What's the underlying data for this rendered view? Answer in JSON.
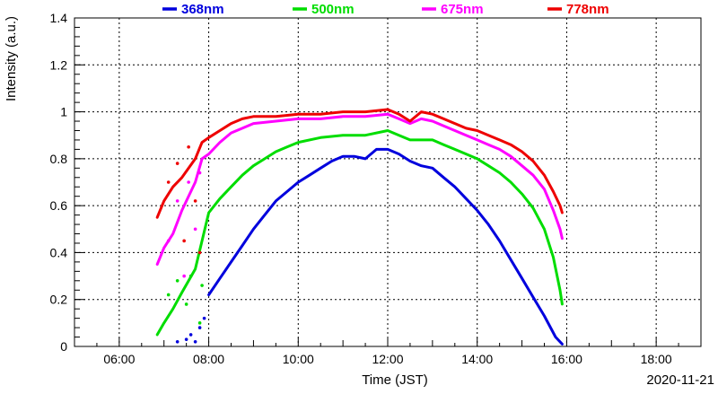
{
  "chart_data": {
    "type": "scatter",
    "title": "",
    "xlabel": "Time (JST)",
    "ylabel": "Intensity (a.u.)",
    "date_label": "2020-11-21",
    "xlim_hours": [
      5.0,
      19.0
    ],
    "ylim": [
      0,
      1.4
    ],
    "grid": true,
    "legend_position": "top",
    "x_ticks": [
      {
        "label": "06:00",
        "hour": 6
      },
      {
        "label": "08:00",
        "hour": 8
      },
      {
        "label": "10:00",
        "hour": 10
      },
      {
        "label": "12:00",
        "hour": 12
      },
      {
        "label": "14:00",
        "hour": 14
      },
      {
        "label": "16:00",
        "hour": 16
      },
      {
        "label": "18:00",
        "hour": 18
      }
    ],
    "y_ticks": [
      {
        "label": "0",
        "value": 0
      },
      {
        "label": "0.2",
        "value": 0.2
      },
      {
        "label": "0.4",
        "value": 0.4
      },
      {
        "label": "0.6",
        "value": 0.6
      },
      {
        "label": "0.8",
        "value": 0.8
      },
      {
        "label": "1",
        "value": 1.0
      },
      {
        "label": "1.2",
        "value": 1.2
      },
      {
        "label": "1.4",
        "value": 1.4
      }
    ],
    "series": [
      {
        "name": "368nm",
        "color": "#0000dd",
        "points": [
          [
            8.0,
            0.22
          ],
          [
            8.25,
            0.29
          ],
          [
            8.5,
            0.36
          ],
          [
            8.75,
            0.43
          ],
          [
            9.0,
            0.5
          ],
          [
            9.25,
            0.56
          ],
          [
            9.5,
            0.62
          ],
          [
            9.75,
            0.66
          ],
          [
            10.0,
            0.7
          ],
          [
            10.25,
            0.73
          ],
          [
            10.5,
            0.76
          ],
          [
            10.75,
            0.79
          ],
          [
            11.0,
            0.81
          ],
          [
            11.25,
            0.81
          ],
          [
            11.5,
            0.8
          ],
          [
            11.75,
            0.84
          ],
          [
            12.0,
            0.84
          ],
          [
            12.25,
            0.82
          ],
          [
            12.5,
            0.79
          ],
          [
            12.75,
            0.77
          ],
          [
            13.0,
            0.76
          ],
          [
            13.25,
            0.72
          ],
          [
            13.5,
            0.68
          ],
          [
            13.75,
            0.63
          ],
          [
            14.0,
            0.58
          ],
          [
            14.25,
            0.52
          ],
          [
            14.5,
            0.45
          ],
          [
            14.75,
            0.37
          ],
          [
            15.0,
            0.29
          ],
          [
            15.25,
            0.21
          ],
          [
            15.5,
            0.13
          ],
          [
            15.75,
            0.04
          ],
          [
            15.9,
            0.01
          ]
        ],
        "early_scatter": [
          [
            7.3,
            0.02
          ],
          [
            7.5,
            0.03
          ],
          [
            7.6,
            0.05
          ],
          [
            7.7,
            0.02
          ],
          [
            7.8,
            0.08
          ],
          [
            7.9,
            0.12
          ]
        ]
      },
      {
        "name": "500nm",
        "color": "#00dd00",
        "points": [
          [
            6.85,
            0.05
          ],
          [
            7.0,
            0.1
          ],
          [
            7.2,
            0.16
          ],
          [
            7.4,
            0.23
          ],
          [
            7.7,
            0.33
          ],
          [
            8.0,
            0.57
          ],
          [
            8.25,
            0.63
          ],
          [
            8.5,
            0.68
          ],
          [
            8.75,
            0.73
          ],
          [
            9.0,
            0.77
          ],
          [
            9.25,
            0.8
          ],
          [
            9.5,
            0.83
          ],
          [
            9.75,
            0.85
          ],
          [
            10.0,
            0.87
          ],
          [
            10.5,
            0.89
          ],
          [
            11.0,
            0.9
          ],
          [
            11.5,
            0.9
          ],
          [
            12.0,
            0.92
          ],
          [
            12.25,
            0.9
          ],
          [
            12.5,
            0.88
          ],
          [
            12.75,
            0.88
          ],
          [
            13.0,
            0.88
          ],
          [
            13.25,
            0.86
          ],
          [
            13.5,
            0.84
          ],
          [
            13.75,
            0.82
          ],
          [
            14.0,
            0.8
          ],
          [
            14.25,
            0.77
          ],
          [
            14.5,
            0.74
          ],
          [
            14.75,
            0.7
          ],
          [
            15.0,
            0.65
          ],
          [
            15.25,
            0.59
          ],
          [
            15.5,
            0.5
          ],
          [
            15.7,
            0.38
          ],
          [
            15.85,
            0.24
          ],
          [
            15.9,
            0.18
          ]
        ],
        "early_scatter": [
          [
            7.1,
            0.22
          ],
          [
            7.3,
            0.28
          ],
          [
            7.5,
            0.18
          ],
          [
            7.6,
            0.3
          ],
          [
            7.8,
            0.1
          ],
          [
            7.85,
            0.26
          ]
        ]
      },
      {
        "name": "675nm",
        "color": "#ff00ff",
        "points": [
          [
            6.85,
            0.35
          ],
          [
            7.0,
            0.42
          ],
          [
            7.2,
            0.48
          ],
          [
            7.4,
            0.58
          ],
          [
            7.7,
            0.7
          ],
          [
            7.85,
            0.8
          ],
          [
            8.0,
            0.82
          ],
          [
            8.25,
            0.87
          ],
          [
            8.5,
            0.91
          ],
          [
            8.75,
            0.93
          ],
          [
            9.0,
            0.95
          ],
          [
            9.5,
            0.96
          ],
          [
            10.0,
            0.97
          ],
          [
            10.5,
            0.97
          ],
          [
            11.0,
            0.98
          ],
          [
            11.5,
            0.98
          ],
          [
            12.0,
            0.99
          ],
          [
            12.25,
            0.97
          ],
          [
            12.5,
            0.95
          ],
          [
            12.75,
            0.97
          ],
          [
            13.0,
            0.96
          ],
          [
            13.25,
            0.94
          ],
          [
            13.5,
            0.92
          ],
          [
            13.75,
            0.9
          ],
          [
            14.0,
            0.88
          ],
          [
            14.25,
            0.86
          ],
          [
            14.5,
            0.84
          ],
          [
            14.75,
            0.81
          ],
          [
            15.0,
            0.77
          ],
          [
            15.25,
            0.73
          ],
          [
            15.5,
            0.67
          ],
          [
            15.7,
            0.58
          ],
          [
            15.85,
            0.5
          ],
          [
            15.9,
            0.46
          ]
        ],
        "early_scatter": [
          [
            7.1,
            0.45
          ],
          [
            7.3,
            0.62
          ],
          [
            7.45,
            0.3
          ],
          [
            7.55,
            0.7
          ],
          [
            7.7,
            0.5
          ],
          [
            7.8,
            0.74
          ]
        ]
      },
      {
        "name": "778nm",
        "color": "#ee0000",
        "points": [
          [
            6.85,
            0.55
          ],
          [
            7.0,
            0.62
          ],
          [
            7.2,
            0.68
          ],
          [
            7.4,
            0.72
          ],
          [
            7.7,
            0.8
          ],
          [
            7.85,
            0.87
          ],
          [
            8.0,
            0.89
          ],
          [
            8.25,
            0.92
          ],
          [
            8.5,
            0.95
          ],
          [
            8.75,
            0.97
          ],
          [
            9.0,
            0.98
          ],
          [
            9.5,
            0.98
          ],
          [
            10.0,
            0.99
          ],
          [
            10.5,
            0.99
          ],
          [
            11.0,
            1.0
          ],
          [
            11.5,
            1.0
          ],
          [
            12.0,
            1.01
          ],
          [
            12.25,
            0.99
          ],
          [
            12.5,
            0.96
          ],
          [
            12.75,
            1.0
          ],
          [
            13.0,
            0.99
          ],
          [
            13.25,
            0.97
          ],
          [
            13.5,
            0.95
          ],
          [
            13.75,
            0.93
          ],
          [
            14.0,
            0.92
          ],
          [
            14.25,
            0.9
          ],
          [
            14.5,
            0.88
          ],
          [
            14.75,
            0.86
          ],
          [
            15.0,
            0.83
          ],
          [
            15.25,
            0.79
          ],
          [
            15.5,
            0.73
          ],
          [
            15.7,
            0.66
          ],
          [
            15.85,
            0.6
          ],
          [
            15.9,
            0.57
          ]
        ],
        "early_scatter": [
          [
            7.1,
            0.7
          ],
          [
            7.3,
            0.78
          ],
          [
            7.45,
            0.45
          ],
          [
            7.55,
            0.85
          ],
          [
            7.7,
            0.62
          ],
          [
            7.8,
            0.4
          ]
        ]
      }
    ]
  }
}
